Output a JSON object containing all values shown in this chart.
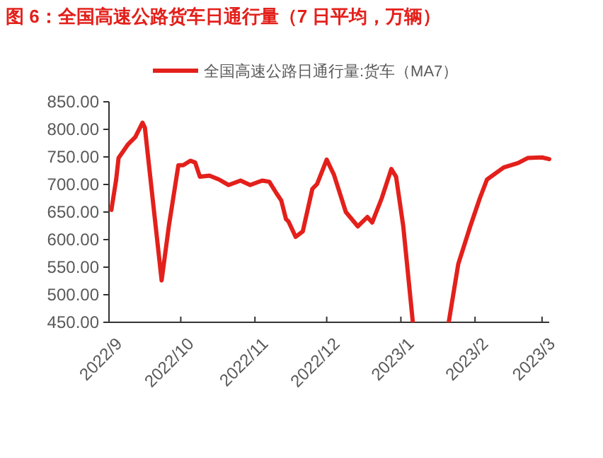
{
  "chart_data": {
    "type": "line",
    "title": "图 6：全国高速公路货车日通行量（7 日平均，万辆）",
    "x": [
      "2022-09-01",
      "2022-09-02",
      "2022-09-04",
      "2022-09-05",
      "2022-09-09",
      "2022-09-12",
      "2022-09-15",
      "2022-09-16",
      "2022-09-19",
      "2022-09-23",
      "2022-09-26",
      "2022-09-30",
      "2022-10-02",
      "2022-10-05",
      "2022-10-07",
      "2022-10-09",
      "2022-10-13",
      "2022-10-17",
      "2022-10-21",
      "2022-10-26",
      "2022-10-30",
      "2022-11-04",
      "2022-11-07",
      "2022-11-10",
      "2022-11-12",
      "2022-11-14",
      "2022-11-15",
      "2022-11-18",
      "2022-11-21",
      "2022-11-25",
      "2022-11-27",
      "2022-12-01",
      "2022-12-04",
      "2022-12-09",
      "2022-12-14",
      "2022-12-18",
      "2022-12-20",
      "2022-12-24",
      "2022-12-28",
      "2022-12-30",
      "2023-01-02",
      "2023-01-06",
      "2023-01-13",
      "2023-01-21",
      "2023-01-25",
      "2023-01-30",
      "2023-02-03",
      "2023-02-06",
      "2023-02-13",
      "2023-02-19",
      "2023-02-23",
      "2023-03-01",
      "2023-03-04"
    ],
    "series": [
      {
        "name": "全国高速公路日通行量:货车（MA7）",
        "color": "#e3201b",
        "values": [
          656,
          654,
          709,
          748,
          773,
          786,
          812,
          803,
          684,
          526,
          624,
          735,
          735,
          743,
          740,
          714,
          716,
          709,
          699,
          707,
          699,
          707,
          705,
          684,
          671,
          637,
          633,
          605,
          615,
          692,
          701,
          745,
          718,
          650,
          624,
          641,
          631,
          675,
          728,
          714,
          624,
          450,
          null,
          450,
          556,
          624,
          675,
          709,
          731,
          739,
          748,
          749,
          746
        ]
      }
    ],
    "xlim": [
      "2022-09-01",
      "2023-03-04"
    ],
    "xticks": [
      {
        "value": "2022-09-01",
        "label": "2022/9"
      },
      {
        "value": "2022-10-01",
        "label": "2022/10"
      },
      {
        "value": "2022-11-01",
        "label": "2022/11"
      },
      {
        "value": "2022-12-01",
        "label": "2022/12"
      },
      {
        "value": "2023-01-01",
        "label": "2023/1"
      },
      {
        "value": "2023-02-01",
        "label": "2023/2"
      },
      {
        "value": "2023-03-01",
        "label": "2023/3"
      }
    ],
    "ylim": [
      450,
      850
    ],
    "yticks": [
      {
        "value": 450,
        "label": "450.00"
      },
      {
        "value": 500,
        "label": "500.00"
      },
      {
        "value": 550,
        "label": "550.00"
      },
      {
        "value": 600,
        "label": "600.00"
      },
      {
        "value": 650,
        "label": "650.00"
      },
      {
        "value": 700,
        "label": "700.00"
      },
      {
        "value": 750,
        "label": "750.00"
      },
      {
        "value": 800,
        "label": "800.00"
      },
      {
        "value": 850,
        "label": "850.00"
      }
    ],
    "legend": "top",
    "grid": false,
    "marker": "none",
    "line_style": "solid"
  }
}
